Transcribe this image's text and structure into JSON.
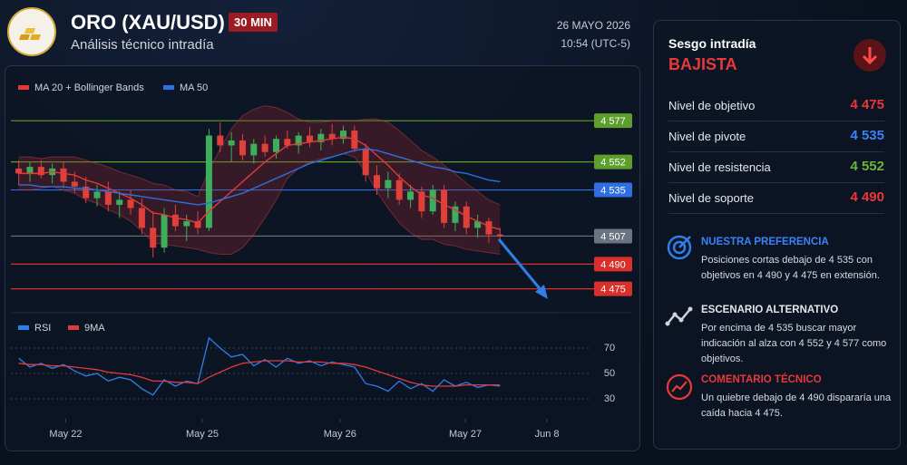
{
  "header": {
    "title": "ORO (XAU/USD)",
    "timeframe": "30 MIN",
    "subtitle": "Análisis técnico intradía",
    "date": "26 MAYO 2026",
    "time": "10:54 (UTC-5)"
  },
  "chart_data": [
    {
      "type": "candlestick",
      "x": [
        0,
        1,
        2,
        3,
        4,
        5,
        6,
        7,
        8,
        9,
        10,
        11,
        12,
        13,
        14,
        15,
        16,
        17,
        18,
        19,
        20,
        21,
        22,
        23,
        24,
        25,
        26,
        27,
        28,
        29,
        30,
        31,
        32,
        33,
        34,
        35,
        36,
        37,
        38,
        39,
        40,
        41,
        42,
        43
      ],
      "open": [
        4548,
        4545,
        4549,
        4544,
        4548,
        4540,
        4537,
        4530,
        4534,
        4526,
        4529,
        4524,
        4512,
        4500,
        4520,
        4513,
        4516,
        4512,
        4568,
        4562,
        4565,
        4556,
        4563,
        4558,
        4566,
        4562,
        4568,
        4564,
        4569,
        4566,
        4571,
        4560,
        4544,
        4536,
        4541,
        4529,
        4534,
        4522,
        4535,
        4515,
        4525,
        4512,
        4516,
        4508
      ],
      "high": [
        4553,
        4552,
        4553,
        4551,
        4552,
        4546,
        4543,
        4538,
        4540,
        4534,
        4535,
        4530,
        4522,
        4524,
        4526,
        4520,
        4522,
        4572,
        4576,
        4570,
        4569,
        4566,
        4568,
        4568,
        4571,
        4570,
        4573,
        4572,
        4575,
        4574,
        4574,
        4563,
        4550,
        4546,
        4545,
        4538,
        4537,
        4538,
        4538,
        4528,
        4528,
        4520,
        4518,
        4512
      ],
      "low": [
        4538,
        4540,
        4542,
        4539,
        4536,
        4533,
        4527,
        4525,
        4522,
        4518,
        4520,
        4508,
        4494,
        4497,
        4510,
        4504,
        4508,
        4510,
        4558,
        4552,
        4553,
        4551,
        4555,
        4554,
        4560,
        4557,
        4561,
        4559,
        4562,
        4563,
        4558,
        4540,
        4532,
        4530,
        4526,
        4524,
        4518,
        4520,
        4512,
        4510,
        4508,
        4506,
        4503,
        4505
      ],
      "close": [
        4545,
        4549,
        4544,
        4548,
        4540,
        4537,
        4530,
        4534,
        4526,
        4529,
        4524,
        4512,
        4500,
        4520,
        4513,
        4516,
        4512,
        4568,
        4562,
        4565,
        4556,
        4563,
        4558,
        4566,
        4562,
        4568,
        4564,
        4569,
        4566,
        4571,
        4560,
        4544,
        4536,
        4541,
        4529,
        4534,
        4522,
        4535,
        4515,
        4525,
        4512,
        4516,
        4508,
        4507
      ],
      "up_color": "#3dae5c",
      "down_color": "#e0403a",
      "series": [
        {
          "name": "MA 20 + Bollinger Bands",
          "color": "#e03a3a",
          "values": [
            4545,
            4545,
            4545,
            4546,
            4545,
            4544,
            4541,
            4539,
            4536,
            4533,
            4530,
            4526,
            4521,
            4520,
            4518,
            4517,
            4515,
            4522,
            4528,
            4534,
            4540,
            4546,
            4552,
            4557,
            4562,
            4563,
            4564,
            4565,
            4566,
            4567,
            4566,
            4562,
            4556,
            4550,
            4543,
            4537,
            4532,
            4530,
            4526,
            4523,
            4519,
            4516,
            4513,
            4511
          ],
          "upper": [
            4555,
            4555,
            4554,
            4555,
            4555,
            4555,
            4553,
            4551,
            4549,
            4546,
            4544,
            4542,
            4539,
            4538,
            4535,
            4534,
            4531,
            4547,
            4560,
            4572,
            4580,
            4584,
            4586,
            4585,
            4582,
            4578,
            4576,
            4576,
            4577,
            4577,
            4577,
            4578,
            4578,
            4576,
            4571,
            4565,
            4559,
            4555,
            4550,
            4545,
            4539,
            4534,
            4529,
            4526
          ],
          "lower": [
            4535,
            4535,
            4536,
            4537,
            4535,
            4533,
            4529,
            4527,
            4523,
            4520,
            4516,
            4510,
            4503,
            4502,
            4501,
            4500,
            4499,
            4497,
            4496,
            4496,
            4500,
            4508,
            4518,
            4529,
            4542,
            4548,
            4552,
            4554,
            4555,
            4557,
            4555,
            4546,
            4534,
            4524,
            4515,
            4509,
            4505,
            4505,
            4502,
            4501,
            4499,
            4498,
            4497,
            4496
          ]
        },
        {
          "name": "MA 50",
          "color": "#2f6fe0",
          "values": [
            4538,
            4538,
            4537,
            4537,
            4537,
            4536,
            4536,
            4535,
            4534,
            4533,
            4532,
            4531,
            4530,
            4529,
            4528,
            4527,
            4526,
            4527,
            4529,
            4531,
            4533,
            4536,
            4539,
            4542,
            4545,
            4548,
            4551,
            4553,
            4555,
            4557,
            4559,
            4560,
            4559,
            4557,
            4555,
            4553,
            4551,
            4549,
            4548,
            4546,
            4545,
            4543,
            4541,
            4540
          ]
        }
      ],
      "levels": [
        {
          "value": 4577,
          "label": "4 577",
          "color": "#5e9e2c"
        },
        {
          "value": 4552,
          "label": "4 552",
          "color": "#5e9e2c"
        },
        {
          "value": 4535,
          "label": "4 535",
          "color": "#2f6fe0"
        },
        {
          "value": 4507,
          "label": "4 507",
          "color": "#6b7280"
        },
        {
          "value": 4490,
          "label": "4 490",
          "color": "#d9302c"
        },
        {
          "value": 4475,
          "label": "4 475",
          "color": "#d9302c"
        }
      ],
      "xlim": [
        -0.7,
        51
      ],
      "ylim": [
        4466,
        4598
      ]
    },
    {
      "type": "line",
      "x": [
        0,
        1,
        2,
        3,
        4,
        5,
        6,
        7,
        8,
        9,
        10,
        11,
        12,
        13,
        14,
        15,
        16,
        17,
        18,
        19,
        20,
        21,
        22,
        23,
        24,
        25,
        26,
        27,
        28,
        29,
        30,
        31,
        32,
        33,
        34,
        35,
        36,
        37,
        38,
        39,
        40,
        41,
        42,
        43
      ],
      "series": [
        {
          "name": "RSI",
          "color": "#2f7fe8",
          "values": [
            62,
            55,
            58,
            54,
            57,
            52,
            48,
            50,
            44,
            47,
            45,
            38,
            33,
            45,
            40,
            44,
            42,
            78,
            70,
            63,
            65,
            56,
            61,
            55,
            62,
            58,
            60,
            56,
            59,
            57,
            55,
            42,
            40,
            36,
            44,
            38,
            42,
            36,
            45,
            40,
            43,
            39,
            41,
            40
          ]
        },
        {
          "name": "9MA",
          "color": "#e03a3a",
          "values": [
            58,
            57,
            57,
            56,
            56,
            55,
            54,
            53,
            51,
            50,
            49,
            47,
            44,
            44,
            43,
            43,
            42,
            47,
            51,
            55,
            58,
            59,
            60,
            60,
            60,
            59,
            59,
            59,
            58,
            58,
            57,
            55,
            52,
            49,
            46,
            43,
            41,
            40,
            40,
            40,
            41,
            41,
            41,
            41
          ]
        }
      ],
      "xlim": [
        -0.7,
        51
      ],
      "xticks": [
        {
          "value": 4.2,
          "label": "May 22"
        },
        {
          "value": 16.4,
          "label": "May 25"
        },
        {
          "value": 28.7,
          "label": "May 26"
        },
        {
          "value": 39.9,
          "label": "May 27"
        },
        {
          "value": 47.2,
          "label": "Jun 8"
        }
      ],
      "ylim": [
        20,
        80
      ],
      "yticks": [
        30,
        50,
        70
      ],
      "grid": true
    }
  ],
  "panel": {
    "title": "Sesgo intradía",
    "bias": "BAJISTA",
    "levels": [
      {
        "label": "Nivel de objetivo",
        "value": "4 475",
        "color": "#e8383a"
      },
      {
        "label": "Nivel de pivote",
        "value": "4 535",
        "color": "#3b82f6"
      },
      {
        "label": "Nivel de resistencia",
        "value": "4 552",
        "color": "#6bb33a"
      },
      {
        "label": "Nivel de soporte",
        "value": "4 490",
        "color": "#e8383a"
      }
    ],
    "notes": [
      {
        "heading": "NUESTRA PREFERENCIA",
        "text": "Posiciones cortas debajo de 4 535 con objetivos en 4 490 y 4 475 en extensión.",
        "color": "#3b82f6"
      },
      {
        "heading": "ESCENARIO ALTERNATIVO",
        "text": "Por encima de 4 535 buscar mayor indicación al alza con 4 552 y 4 577 como objetivos.",
        "color": "#e5e7eb"
      },
      {
        "heading": "COMENTARIO TÉCNICO",
        "text": "Un quiebre debajo de 4 490 dispararía una caída hacia 4 475.",
        "color": "#e8383a"
      }
    ]
  }
}
